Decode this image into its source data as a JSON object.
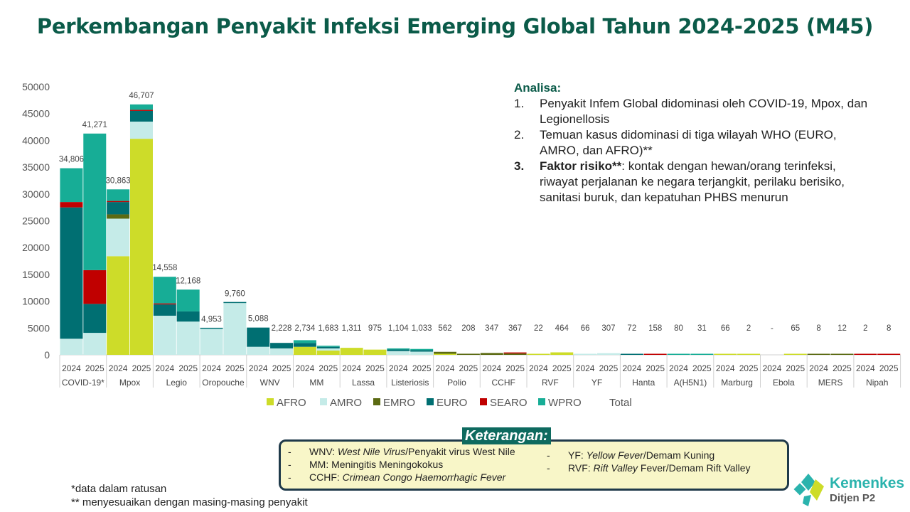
{
  "title": "Perkembangan Penyakit Infeksi Emerging Global Tahun 2024-2025 (M45)",
  "analysis": {
    "heading": "Analisa:",
    "items": [
      {
        "num": "1.",
        "text": "Penyakit Infem Global didominasi oleh COVID-19, Mpox, dan Legionellosis"
      },
      {
        "num": "2.",
        "text": "Temuan kasus didominasi di tiga wilayah WHO (EURO, AMRO, dan AFRO)**"
      },
      {
        "num": "3.",
        "bold": "Faktor risiko**",
        "text": ": kontak dengan hewan/orang terinfeksi, riwayat perjalanan ke negara terjangkit, perilaku berisiko, sanitasi buruk, dan kepatuhan PHBS menurun"
      }
    ]
  },
  "keterangan": {
    "title": "Keterangan:",
    "left": [
      {
        "abbr": "WNV: ",
        "desc": "West Nile Virus",
        "rest": "/Penyakit virus West Nile"
      },
      {
        "abbr": "MM: ",
        "desc": "",
        "rest": "Meningitis Meningokokus"
      },
      {
        "abbr": "CCHF: ",
        "desc": "Crimean Congo Haemorrhagic Fever",
        "rest": ""
      }
    ],
    "right": [
      {
        "abbr": "YF: ",
        "desc": "Yellow Fever",
        "rest": "/Demam Kuning"
      },
      {
        "abbr": "RVF: ",
        "desc": "Rift Valley",
        "rest": " Fever/Demam Rift Valley"
      }
    ]
  },
  "footnotes": [
    "*data dalam ratusan",
    "** menyesuaikan dengan masing-masing penyakit"
  ],
  "logo": {
    "name": "Kemenkes",
    "sub": "Ditjen P2"
  },
  "chart_data": {
    "type": "bar",
    "stacked": true,
    "title": "Perkembangan Penyakit Infeksi Emerging Global Tahun 2024-2025 (M45)",
    "ylim": [
      0,
      50000
    ],
    "yticks": [
      0,
      5000,
      10000,
      15000,
      20000,
      25000,
      30000,
      35000,
      40000,
      45000,
      50000
    ],
    "legend_position": "bottom",
    "legend": [
      "AFRO",
      "AMRO",
      "EMRO",
      "EURO",
      "SEARO",
      "WPRO",
      "Total"
    ],
    "colors": {
      "AFRO": "#cddc29",
      "AMRO": "#c5ebe8",
      "EMRO": "#5b6a12",
      "EURO": "#006f72",
      "SEARO": "#c00000",
      "WPRO": "#17ad96"
    },
    "years": [
      "2024",
      "2025"
    ],
    "groups": [
      {
        "name": "COVID-19*",
        "bars": [
          {
            "total": "34,806",
            "seg": {
              "AMRO": 3000,
              "EURO": 24500,
              "SEARO": 1000,
              "WPRO": 6306
            }
          },
          {
            "total": "41,271",
            "seg": {
              "AMRO": 4100,
              "EURO": 5400,
              "SEARO": 6300,
              "WPRO": 25471
            }
          }
        ]
      },
      {
        "name": "Mpox",
        "bars": [
          {
            "total": "30,863",
            "seg": {
              "AFRO": 18400,
              "AMRO": 7000,
              "EMRO": 800,
              "EURO": 2300,
              "SEARO": 200,
              "WPRO": 2163
            }
          },
          {
            "total": "46,707",
            "seg": {
              "AFRO": 40300,
              "AMRO": 3200,
              "EURO": 2000,
              "SEARO": 200,
              "WPRO": 1007
            }
          }
        ]
      },
      {
        "name": "Legio",
        "bars": [
          {
            "total": "14,558",
            "seg": {
              "AMRO": 7300,
              "EURO": 2100,
              "SEARO": 200,
              "WPRO": 4958
            }
          },
          {
            "total": "12,168",
            "seg": {
              "AMRO": 6200,
              "EURO": 1900,
              "WPRO": 4068
            }
          }
        ]
      },
      {
        "name": "Oropouche",
        "bars": [
          {
            "total": "4,953",
            "seg": {
              "AMRO": 4853,
              "EURO": 100
            }
          },
          {
            "total": "9,760",
            "seg": {
              "AMRO": 9660,
              "EURO": 100
            }
          }
        ]
      },
      {
        "name": "WNV",
        "bars": [
          {
            "total": "5,088",
            "seg": {
              "AMRO": 1500,
              "EURO": 3588
            }
          },
          {
            "total": "2,228",
            "seg": {
              "AMRO": 1200,
              "EURO": 1028
            }
          }
        ]
      },
      {
        "name": "MM",
        "bars": [
          {
            "total": "2,734",
            "seg": {
              "AFRO": 1500,
              "EURO": 700,
              "WPRO": 534
            }
          },
          {
            "total": "1,683",
            "seg": {
              "AFRO": 800,
              "AMRO": 400,
              "EURO": 300,
              "WPRO": 183
            }
          }
        ]
      },
      {
        "name": "Lassa",
        "bars": [
          {
            "total": "1,311",
            "seg": {
              "AFRO": 1311
            }
          },
          {
            "total": "975",
            "seg": {
              "AFRO": 975
            }
          }
        ]
      },
      {
        "name": "Listeriosis",
        "bars": [
          {
            "total": "1,104",
            "seg": {
              "AMRO": 700,
              "EURO": 300,
              "WPRO": 104
            }
          },
          {
            "total": "1,033",
            "seg": {
              "AMRO": 600,
              "EURO": 300,
              "WPRO": 133
            }
          }
        ]
      },
      {
        "name": "Polio",
        "bars": [
          {
            "total": "562",
            "seg": {
              "AFRO": 200,
              "EMRO": 362
            }
          },
          {
            "total": "208",
            "seg": {
              "EMRO": 208
            }
          }
        ]
      },
      {
        "name": "CCHF",
        "bars": [
          {
            "total": "347",
            "seg": {
              "EMRO": 347
            }
          },
          {
            "total": "367",
            "seg": {
              "EMRO": 250,
              "SEARO": 117
            }
          }
        ]
      },
      {
        "name": "RVF",
        "bars": [
          {
            "total": "22",
            "seg": {
              "AFRO": 22
            }
          },
          {
            "total": "464",
            "seg": {
              "AFRO": 464
            }
          }
        ]
      },
      {
        "name": "YF",
        "bars": [
          {
            "total": "66",
            "seg": {
              "AMRO": 66
            }
          },
          {
            "total": "307",
            "seg": {
              "AMRO": 307
            }
          }
        ]
      },
      {
        "name": "Hanta",
        "bars": [
          {
            "total": "72",
            "seg": {
              "EURO": 72
            }
          },
          {
            "total": "158",
            "seg": {
              "SEARO": 158
            }
          }
        ]
      },
      {
        "name": "A(H5N1)",
        "bars": [
          {
            "total": "80",
            "seg": {
              "WPRO": 80
            }
          },
          {
            "total": "31",
            "seg": {
              "WPRO": 31
            }
          }
        ]
      },
      {
        "name": "Marburg",
        "bars": [
          {
            "total": "66",
            "seg": {
              "AFRO": 66
            }
          },
          {
            "total": "2",
            "seg": {
              "AFRO": 2
            }
          }
        ]
      },
      {
        "name": "Ebola",
        "bars": [
          {
            "total": "-",
            "seg": {}
          },
          {
            "total": "65",
            "seg": {
              "AFRO": 65
            }
          }
        ]
      },
      {
        "name": "MERS",
        "bars": [
          {
            "total": "8",
            "seg": {
              "EMRO": 8
            }
          },
          {
            "total": "12",
            "seg": {
              "EMRO": 12
            }
          }
        ]
      },
      {
        "name": "Nipah",
        "bars": [
          {
            "total": "2",
            "seg": {
              "SEARO": 2
            }
          },
          {
            "total": "8",
            "seg": {
              "SEARO": 8
            }
          }
        ]
      }
    ]
  }
}
